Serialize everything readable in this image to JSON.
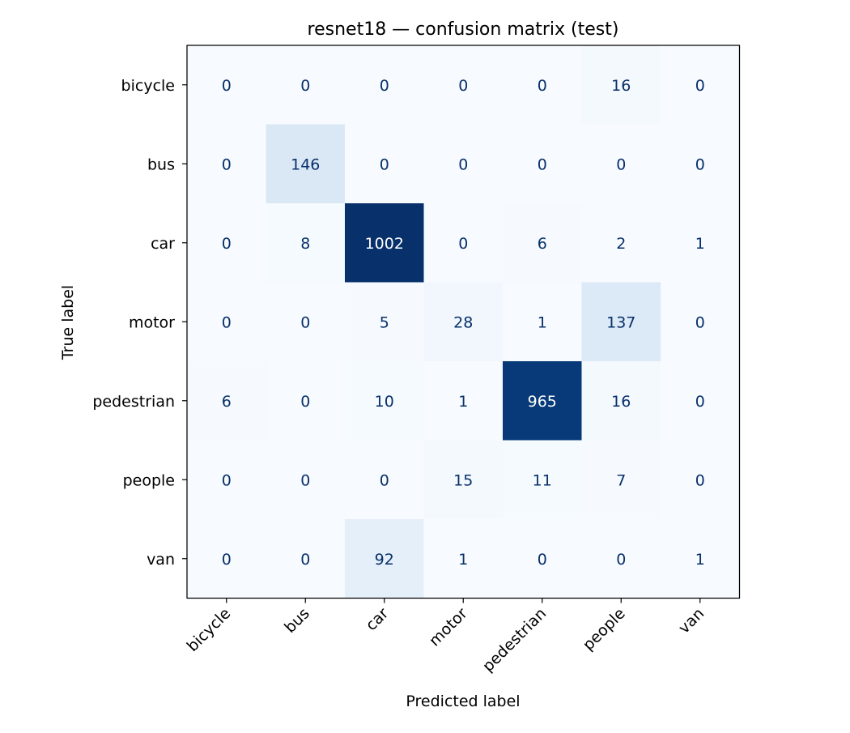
{
  "chart_data": {
    "type": "heatmap",
    "title": "resnet18 — confusion matrix (test)",
    "xlabel": "Predicted label",
    "ylabel": "True label",
    "x_categories": [
      "bicycle",
      "bus",
      "car",
      "motor",
      "pedestrian",
      "people",
      "van"
    ],
    "y_categories": [
      "bicycle",
      "bus",
      "car",
      "motor",
      "pedestrian",
      "people",
      "van"
    ],
    "values": [
      [
        0,
        0,
        0,
        0,
        0,
        16,
        0
      ],
      [
        0,
        146,
        0,
        0,
        0,
        0,
        0
      ],
      [
        0,
        8,
        1002,
        0,
        6,
        2,
        1
      ],
      [
        0,
        0,
        5,
        28,
        1,
        137,
        0
      ],
      [
        6,
        0,
        10,
        1,
        965,
        16,
        0
      ],
      [
        0,
        0,
        0,
        15,
        11,
        7,
        0
      ],
      [
        0,
        0,
        92,
        1,
        0,
        0,
        1
      ]
    ],
    "colormap": "Blues",
    "vmin": 0,
    "vmax": 1002,
    "colorbar": false,
    "grid": false
  }
}
